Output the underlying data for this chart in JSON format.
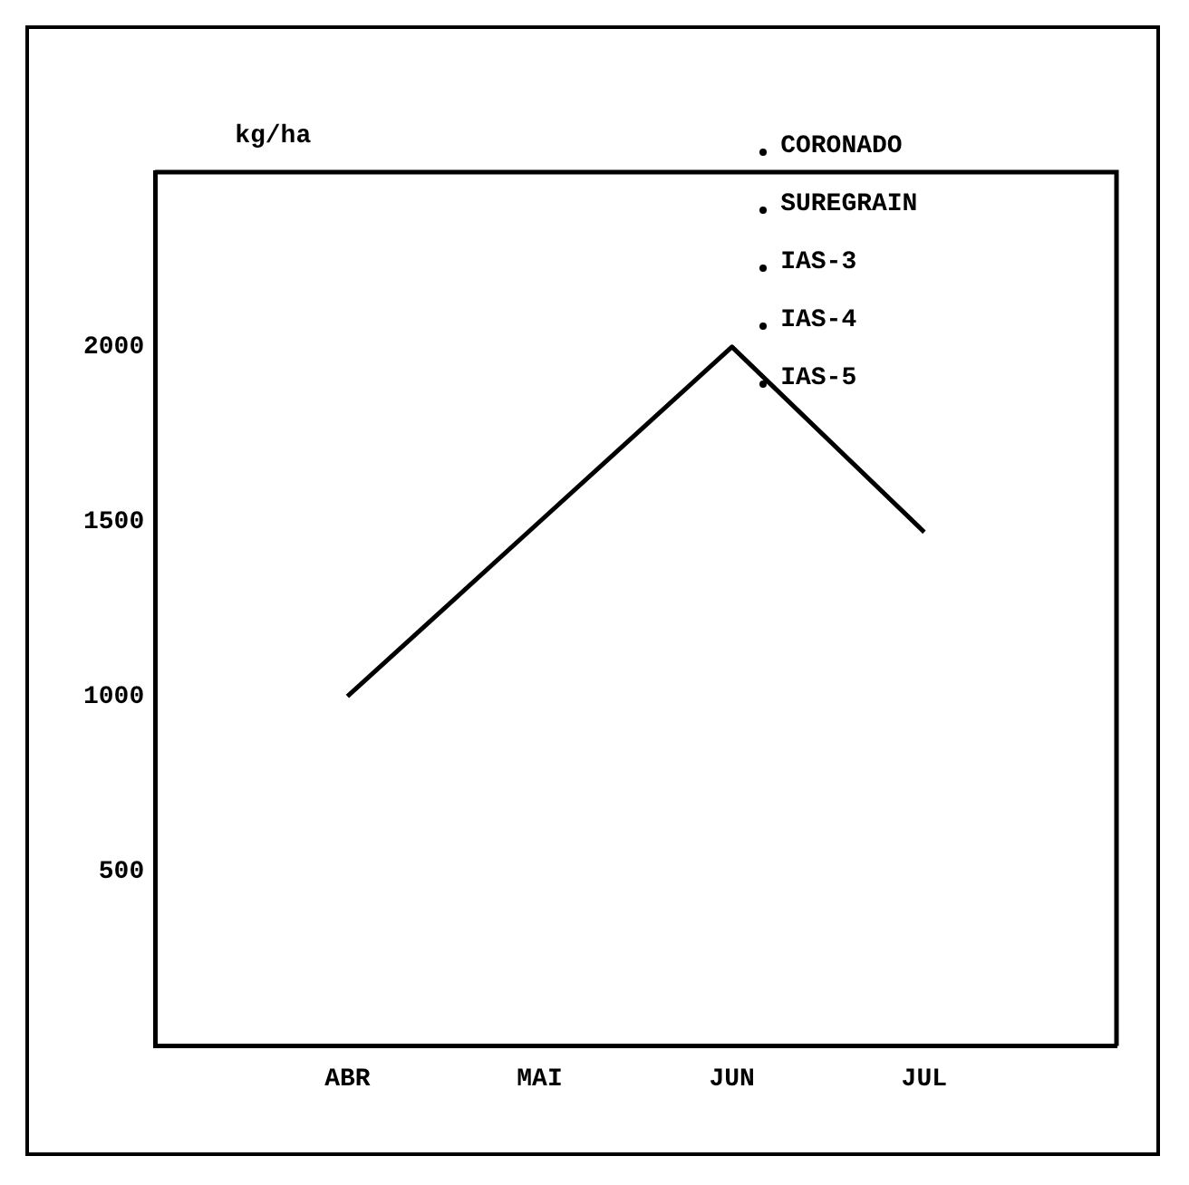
{
  "chart_data": {
    "type": "line",
    "ylabel": "kg/ha",
    "categories": [
      "ABR",
      "MAI",
      "JUN",
      "JUL"
    ],
    "series": [
      {
        "color": "#000000",
        "values": [
          1000,
          1500,
          2000,
          1470
        ]
      }
    ],
    "ylim": [
      0,
      2500
    ],
    "yticks": [
      500,
      1000,
      1500,
      2000
    ],
    "grid": false,
    "legend": false,
    "marker": "none",
    "line_style": "solid",
    "annotations": [
      "CORONADO",
      "SUREGRAIN",
      "IAS-3",
      "IAS-4",
      "IAS-5"
    ]
  }
}
